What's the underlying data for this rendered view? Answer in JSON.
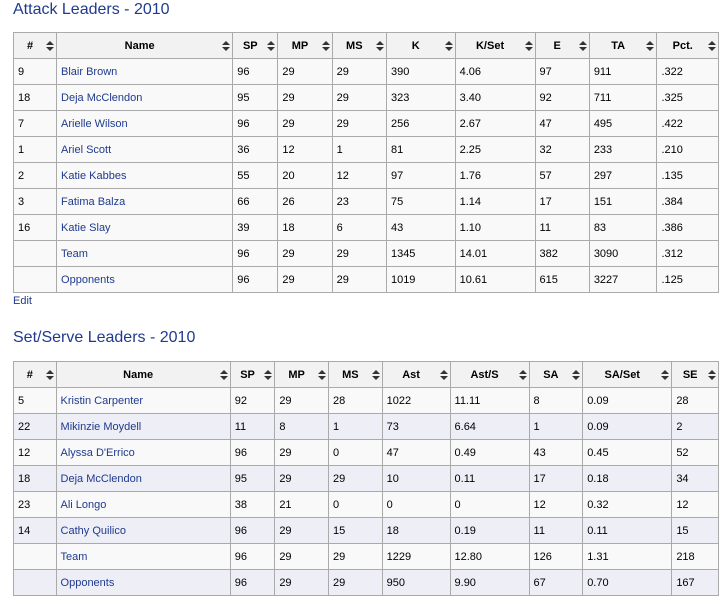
{
  "attack": {
    "title": "Attack Leaders - 2010",
    "columns": [
      "#",
      "Name",
      "SP",
      "MP",
      "MS",
      "K",
      "K/Set",
      "E",
      "TA",
      "Pct."
    ],
    "rows": [
      [
        "9",
        "Blair Brown",
        "96",
        "29",
        "29",
        "390",
        "4.06",
        "97",
        "911",
        ".322"
      ],
      [
        "18",
        "Deja McClendon",
        "95",
        "29",
        "29",
        "323",
        "3.40",
        "92",
        "711",
        ".325"
      ],
      [
        "7",
        "Arielle Wilson",
        "96",
        "29",
        "29",
        "256",
        "2.67",
        "47",
        "495",
        ".422"
      ],
      [
        "1",
        "Ariel Scott",
        "36",
        "12",
        "1",
        "81",
        "2.25",
        "32",
        "233",
        ".210"
      ],
      [
        "2",
        "Katie Kabbes",
        "55",
        "20",
        "12",
        "97",
        "1.76",
        "57",
        "297",
        ".135"
      ],
      [
        "3",
        "Fatima Balza",
        "66",
        "26",
        "23",
        "75",
        "1.14",
        "17",
        "151",
        ".384"
      ],
      [
        "16",
        "Katie Slay",
        "39",
        "18",
        "6",
        "43",
        "1.10",
        "11",
        "83",
        ".386"
      ],
      [
        "",
        "Team",
        "96",
        "29",
        "29",
        "1345",
        "14.01",
        "382",
        "3090",
        ".312"
      ],
      [
        "",
        "Opponents",
        "96",
        "29",
        "29",
        "1019",
        "10.61",
        "615",
        "3227",
        ".125"
      ]
    ],
    "edit_label": "Edit"
  },
  "setserve": {
    "title": "Set/Serve Leaders - 2010",
    "columns": [
      "#",
      "Name",
      "SP",
      "MP",
      "MS",
      "Ast",
      "Ast/S",
      "SA",
      "SA/Set",
      "SE"
    ],
    "rows": [
      [
        "5",
        "Kristin Carpenter",
        "92",
        "29",
        "28",
        "1022",
        "11.11",
        "8",
        "0.09",
        "28"
      ],
      [
        "22",
        "Mikinzie Moydell",
        "11",
        "8",
        "1",
        "73",
        "6.64",
        "1",
        "0.09",
        "2"
      ],
      [
        "12",
        "Alyssa D'Errico",
        "96",
        "29",
        "0",
        "47",
        "0.49",
        "43",
        "0.45",
        "52"
      ],
      [
        "18",
        "Deja McClendon",
        "95",
        "29",
        "29",
        "10",
        "0.11",
        "17",
        "0.18",
        "34"
      ],
      [
        "23",
        "Ali Longo",
        "38",
        "21",
        "0",
        "0",
        "0",
        "12",
        "0.32",
        "12"
      ],
      [
        "14",
        "Cathy Quilico",
        "96",
        "29",
        "15",
        "18",
        "0.19",
        "11",
        "0.11",
        "15"
      ],
      [
        "",
        "Team",
        "96",
        "29",
        "29",
        "1229",
        "12.80",
        "126",
        "1.31",
        "218"
      ],
      [
        "",
        "Opponents",
        "96",
        "29",
        "29",
        "950",
        "9.90",
        "67",
        "0.70",
        "167"
      ]
    ]
  },
  "colors": {
    "link": "#1f3a8f",
    "header_bg": "#f2f2f2",
    "row_bg": "#f9f9f9",
    "zebra_bg": "#eeeef6",
    "border": "#aaaaaa"
  },
  "icons": {
    "sort": "sort-arrows-icon"
  }
}
